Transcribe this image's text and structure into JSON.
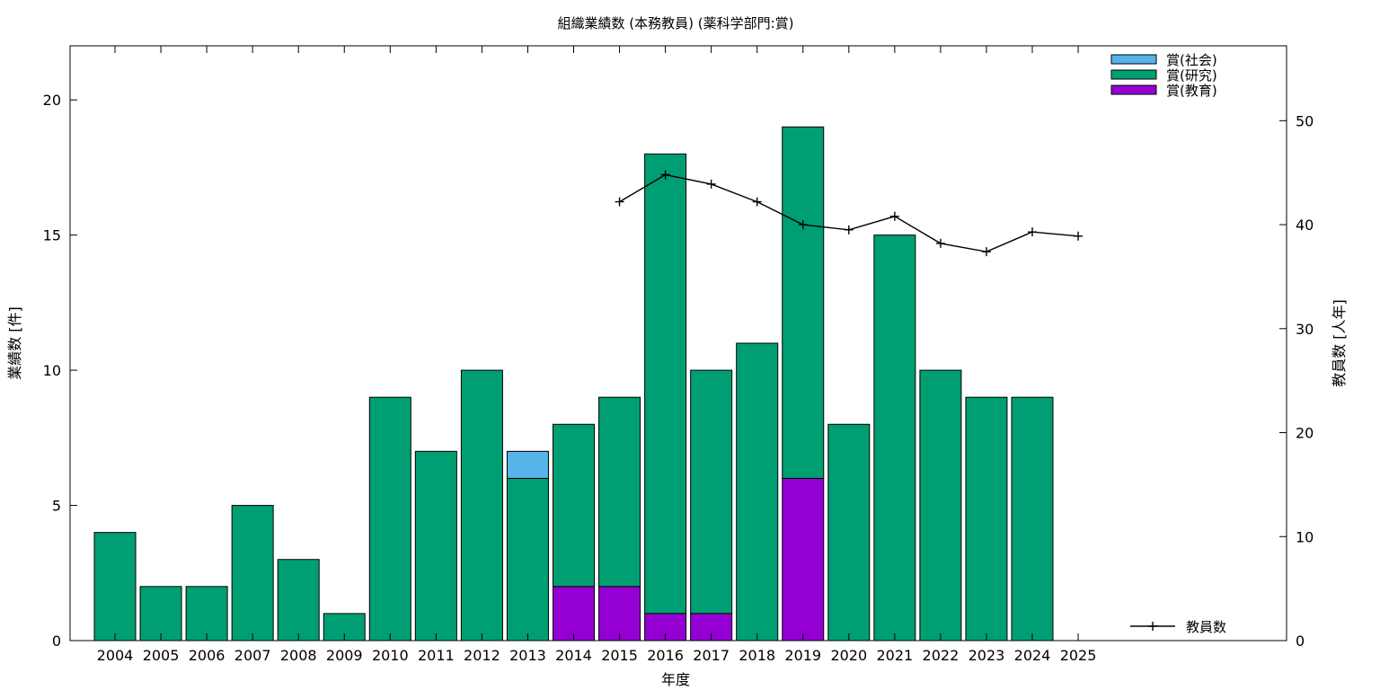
{
  "chart_data": {
    "type": "bar",
    "title": "組織業績数 (本務教員) (薬科学部門:賞)",
    "xlabel": "年度",
    "ylabel": "業績数 [件]",
    "y2label": "教員数 [人年]",
    "categories": [
      "2004",
      "2005",
      "2006",
      "2007",
      "2008",
      "2009",
      "2010",
      "2011",
      "2012",
      "2013",
      "2014",
      "2015",
      "2016",
      "2017",
      "2018",
      "2019",
      "2020",
      "2021",
      "2022",
      "2023",
      "2024",
      "2025"
    ],
    "stacked": true,
    "ylim": [
      0,
      22
    ],
    "y2lim": [
      0,
      57.2
    ],
    "yticks": [
      0,
      5,
      10,
      15,
      20
    ],
    "y2ticks": [
      0,
      10,
      20,
      30,
      40,
      50
    ],
    "grid": false,
    "legend_position": "top-right",
    "series": [
      {
        "name": "賞(教育)",
        "color": "#9400d3",
        "values": [
          0,
          0,
          0,
          0,
          0,
          0,
          0,
          0,
          0,
          0,
          2,
          2,
          1,
          1,
          0,
          6,
          0,
          0,
          0,
          0,
          0,
          0
        ]
      },
      {
        "name": "賞(研究)",
        "color": "#009e73",
        "values": [
          4,
          2,
          2,
          5,
          3,
          1,
          9,
          7,
          10,
          6,
          6,
          7,
          17,
          9,
          11,
          13,
          8,
          15,
          10,
          9,
          9,
          0
        ]
      },
      {
        "name": "賞(社会)",
        "color": "#56b4e9",
        "values": [
          0,
          0,
          0,
          0,
          0,
          0,
          0,
          0,
          0,
          1,
          0,
          0,
          0,
          0,
          0,
          0,
          0,
          0,
          0,
          0,
          0,
          0
        ]
      }
    ],
    "legend_order": [
      "賞(社会)",
      "賞(研究)",
      "賞(教育)"
    ],
    "line_series": {
      "name": "教員数",
      "axis": "y2",
      "color": "#000000",
      "legend_position": "bottom-right",
      "x": [
        "2015",
        "2016",
        "2017",
        "2018",
        "2019",
        "2020",
        "2021",
        "2022",
        "2023",
        "2024",
        "2025"
      ],
      "values": [
        42.2,
        44.8,
        43.9,
        42.2,
        40.0,
        39.5,
        40.8,
        38.2,
        37.4,
        39.3,
        38.9
      ]
    }
  }
}
